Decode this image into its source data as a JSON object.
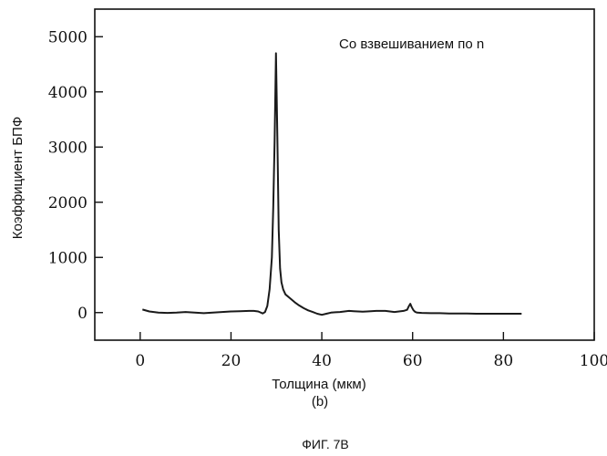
{
  "chart_data": {
    "type": "line",
    "title": "",
    "xlabel": "Толщина (мкм)",
    "ylabel": "Коэффициент БПФ",
    "xlim": [
      -10,
      100
    ],
    "ylim": [
      -500,
      5500
    ],
    "xticks": [
      0,
      20,
      40,
      60,
      80,
      100
    ],
    "yticks": [
      0,
      1000,
      2000,
      3000,
      4000,
      5000
    ],
    "grid": false,
    "legend": "none",
    "annotation": "Со взвешиванием по n",
    "series": [
      {
        "x": [
          0.5,
          2,
          4,
          6,
          8,
          10,
          12,
          14,
          16,
          18,
          20,
          22,
          24,
          25,
          26,
          27,
          27.5,
          28,
          28.5,
          29,
          29.3,
          29.6,
          29.9,
          30.2,
          30.5,
          30.8,
          31.1,
          31.5,
          32,
          33,
          34,
          35,
          36,
          37,
          38,
          39,
          40,
          41,
          42,
          43,
          44,
          45,
          46,
          47,
          48,
          49,
          50,
          52,
          54,
          56,
          58,
          58.8,
          59.2,
          59.5,
          59.8,
          60.2,
          60.6,
          61,
          62,
          64,
          66,
          68,
          70,
          72,
          74,
          76,
          78,
          80,
          82,
          84
        ],
        "y": [
          55,
          20,
          0,
          -5,
          0,
          10,
          0,
          -10,
          0,
          10,
          20,
          25,
          30,
          30,
          20,
          -15,
          10,
          120,
          420,
          1000,
          1900,
          3100,
          4700,
          3200,
          1500,
          800,
          550,
          420,
          330,
          260,
          190,
          130,
          80,
          40,
          10,
          -20,
          -40,
          -20,
          0,
          5,
          10,
          20,
          30,
          25,
          20,
          15,
          20,
          30,
          30,
          10,
          30,
          50,
          120,
          160,
          100,
          40,
          10,
          0,
          -5,
          -10,
          -10,
          -15,
          -15,
          -15,
          -20,
          -20,
          -20,
          -20,
          -20,
          -20
        ]
      }
    ]
  },
  "labels": {
    "subfigure": "(b)",
    "figure": "ФИГ. 7В"
  }
}
